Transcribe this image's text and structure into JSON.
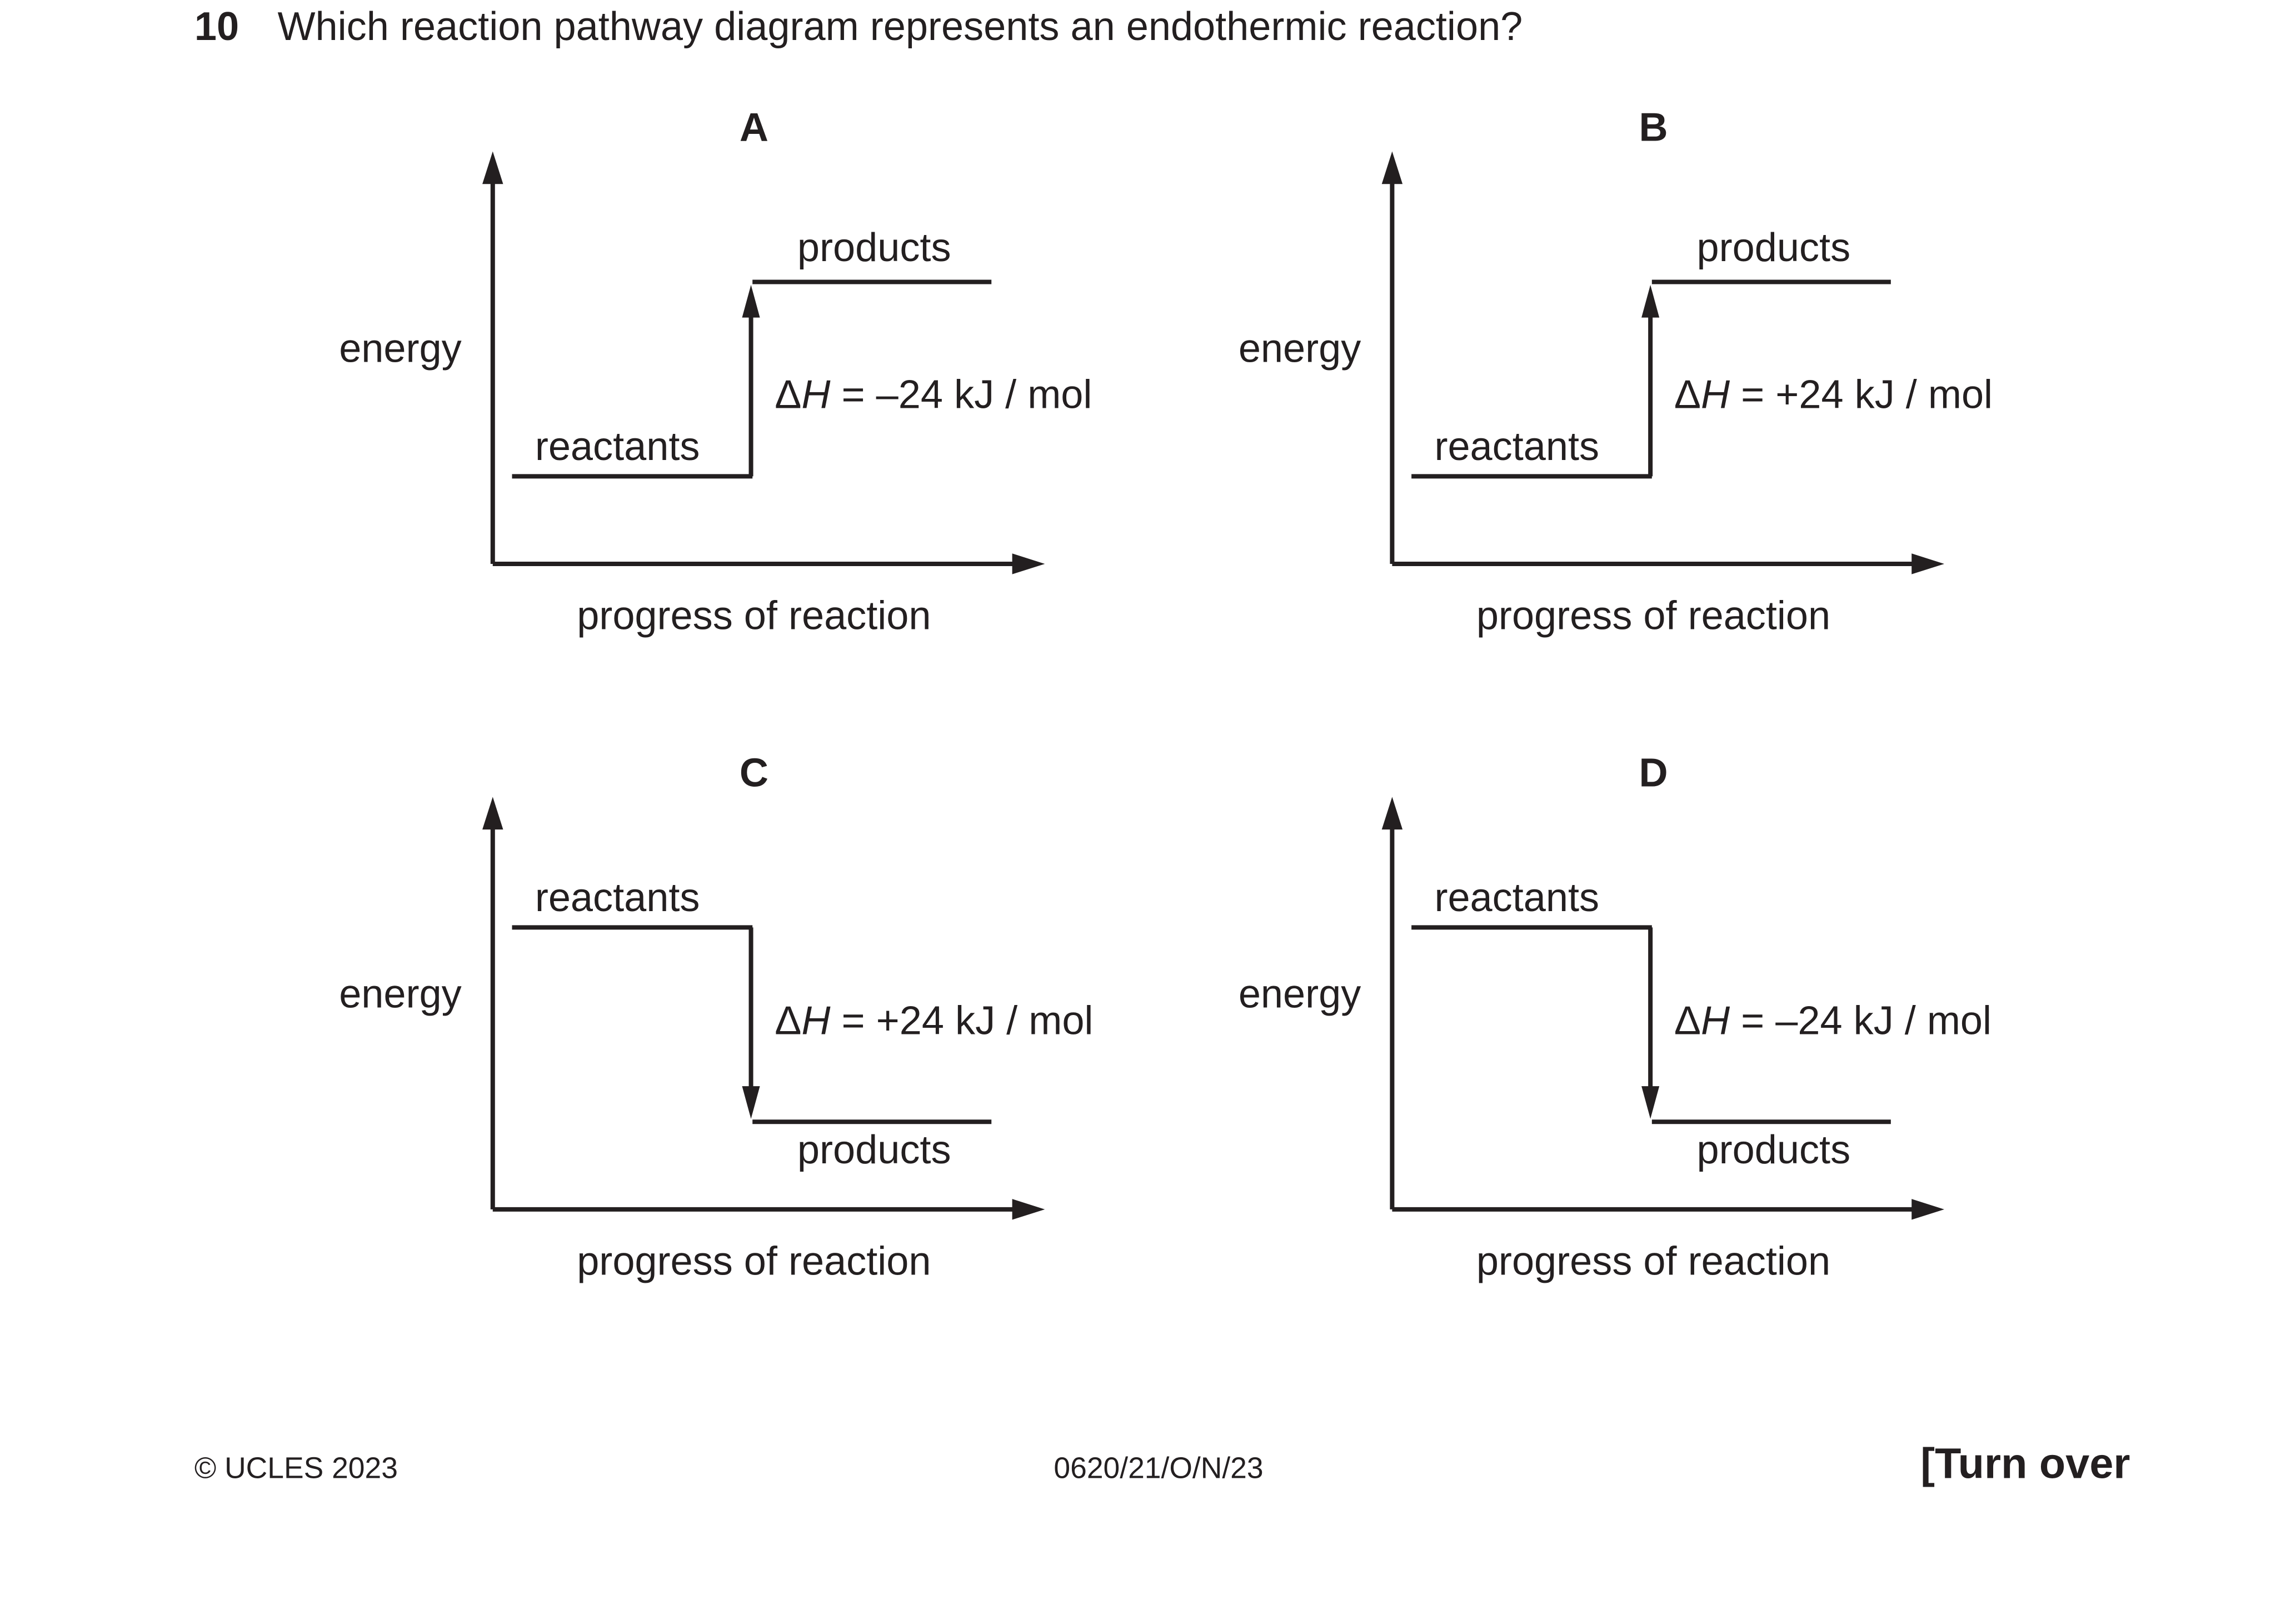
{
  "question": {
    "number": "10",
    "text": "Which reaction pathway diagram represents an endothermic reaction?"
  },
  "common_labels": {
    "y_axis": "energy",
    "x_axis": "progress of reaction",
    "reactants": "reactants",
    "products": "products"
  },
  "options": [
    {
      "letter": "A",
      "direction": "up",
      "delta_h_symbol": "Δ",
      "delta_h_var": "H",
      "delta_h_value": " = –24 kJ / mol"
    },
    {
      "letter": "B",
      "direction": "up",
      "delta_h_symbol": "Δ",
      "delta_h_var": "H",
      "delta_h_value": " = +24 kJ / mol"
    },
    {
      "letter": "C",
      "direction": "down",
      "delta_h_symbol": "Δ",
      "delta_h_var": "H",
      "delta_h_value": " = +24 kJ / mol"
    },
    {
      "letter": "D",
      "direction": "down",
      "delta_h_symbol": "Δ",
      "delta_h_var": "H",
      "delta_h_value": " = –24 kJ / mol"
    }
  ],
  "footer": {
    "copyright": "© UCLES 2023",
    "paper_code": "0620/21/O/N/23",
    "turn_over": "[Turn over"
  },
  "colors": {
    "ink": "#231f20",
    "background": "#ffffff"
  }
}
